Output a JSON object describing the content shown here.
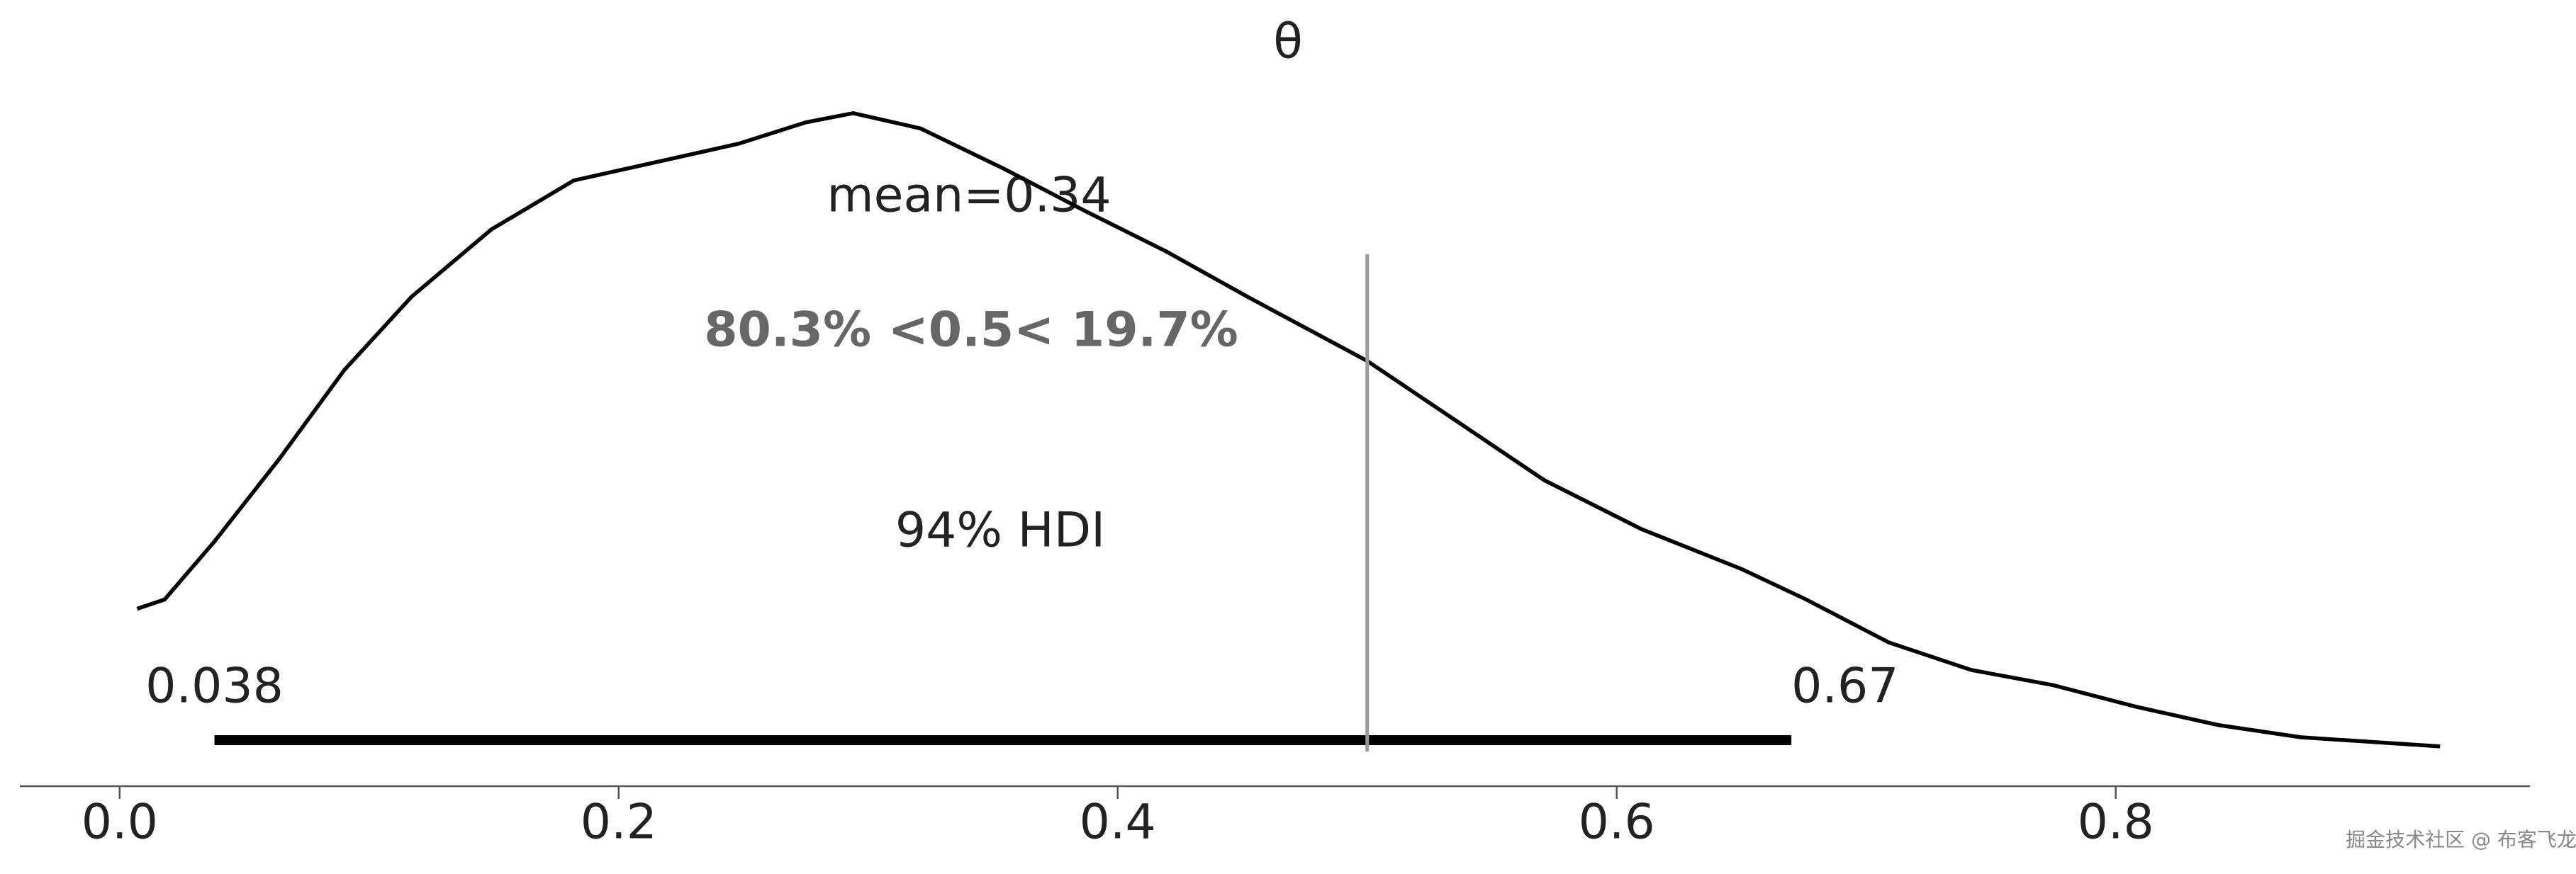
{
  "chart_data": {
    "type": "density",
    "title": "θ",
    "x": [
      0.007,
      0.018,
      0.038,
      0.064,
      0.09,
      0.117,
      0.149,
      0.182,
      0.215,
      0.248,
      0.275,
      0.294,
      0.321,
      0.354,
      0.387,
      0.419,
      0.452,
      0.5,
      0.531,
      0.571,
      0.61,
      0.65,
      0.676,
      0.709,
      0.742,
      0.775,
      0.808,
      0.841,
      0.874,
      0.93
    ],
    "values": [
      0.58,
      0.61,
      0.8,
      1.07,
      1.36,
      1.6,
      1.82,
      1.98,
      2.04,
      2.1,
      2.17,
      2.2,
      2.15,
      2.02,
      1.88,
      1.75,
      1.6,
      1.39,
      1.22,
      1.0,
      0.84,
      0.71,
      0.61,
      0.47,
      0.38,
      0.33,
      0.26,
      0.2,
      0.16,
      0.13
    ],
    "color": "#000000",
    "xlim": [
      -0.04,
      0.966
    ],
    "ylim": [
      0,
      2.35
    ],
    "xticks": [
      {
        "value": 0,
        "label": "0.0"
      },
      0.2,
      0.4,
      0.6,
      0.8
    ],
    "mean_label": "mean=0.34",
    "ref_val": 0.5,
    "ref_label": "80.3% <0.5< 19.7%",
    "ref_color": "#999999",
    "hdi": [
      0.038,
      0.67
    ],
    "hdi_label": "94% HDI"
  },
  "watermark": "掘金技术社区 @ 布客飞龙"
}
